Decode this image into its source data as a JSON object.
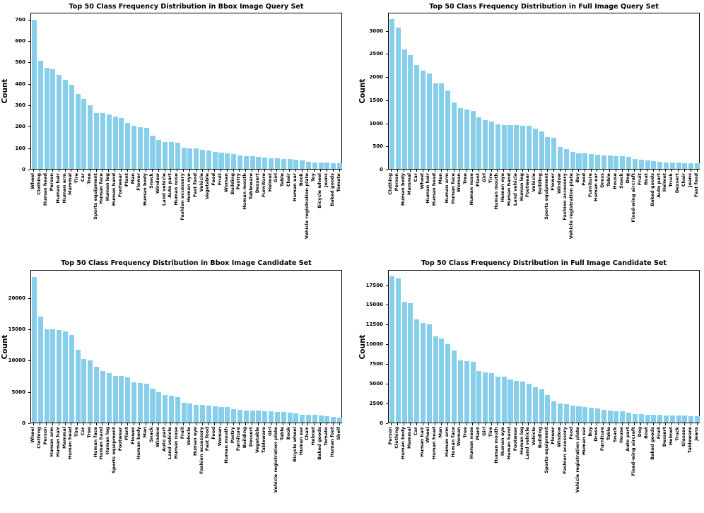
{
  "figure": {
    "background_color": "#ffffff",
    "bar_color": "#87CEEB",
    "axis_color": "#000000"
  },
  "chart_data": [
    {
      "type": "bar",
      "title": "Top 50 Class Frequency Distribution in Bbox Image Query Set",
      "ylabel": "Count",
      "xlabel": "",
      "legend": null,
      "grid": false,
      "ylim": [
        0,
        732
      ],
      "yticks": [
        0,
        100,
        200,
        300,
        400,
        500,
        600,
        700
      ],
      "categories": [
        "Wheel",
        "Clothing",
        "Human head",
        "Person",
        "Human hair",
        "Human arm",
        "Mammal",
        "Tire",
        "Car",
        "Tree",
        "Sports equipment",
        "Human face",
        "Human leg",
        "Human hand",
        "Footwear",
        "Plant",
        "Man",
        "Flower",
        "Human body",
        "Snack",
        "Window",
        "Land vehicle",
        "Auto part",
        "Human nose",
        "Fashion accessory",
        "Human eye",
        "Fast food",
        "Vehicle",
        "Vegetable",
        "Food",
        "Fruit",
        "Woman",
        "Building",
        "Pastry",
        "Human mouth",
        "Tableware",
        "Dessert",
        "Furniture",
        "Helmet",
        "Girl",
        "Table",
        "Chair",
        "Human ear",
        "Book",
        "Vehicle registration plate",
        "Toy",
        "Bicycle wheel",
        "Jeans",
        "Baked goods",
        "Tomato"
      ],
      "values": [
        697,
        505,
        470,
        465,
        440,
        416,
        394,
        350,
        325,
        296,
        261,
        260,
        253,
        243,
        237,
        214,
        201,
        196,
        191,
        154,
        136,
        126,
        124,
        122,
        100,
        97,
        95,
        90,
        85,
        78,
        75,
        72,
        68,
        64,
        61,
        58,
        57,
        54,
        50,
        48,
        47,
        46,
        43,
        41,
        33,
        31,
        30,
        29,
        28,
        27
      ]
    },
    {
      "type": "bar",
      "title": "Top 50 Class Frequency Distribution in Full Image Query Set",
      "ylabel": "Count",
      "xlabel": "",
      "legend": null,
      "grid": false,
      "ylim": [
        0,
        3390
      ],
      "yticks": [
        0,
        500,
        1000,
        1500,
        2000,
        2500,
        3000
      ],
      "categories": [
        "Clothing",
        "Person",
        "Human body",
        "Mammal",
        "Car",
        "Wheel",
        "Human hair",
        "Human head",
        "Man",
        "Human arm",
        "Human face",
        "Woman",
        "Tree",
        "Human nose",
        "Plant",
        "Girl",
        "Tire",
        "Human mouth",
        "Human eye",
        "Human hand",
        "Land vehicle",
        "Human leg",
        "Footwear",
        "Vehicle",
        "Building",
        "Sports equipment",
        "Flower",
        "Window",
        "Fashion accessory",
        "Vehicle registration plate",
        "Boy",
        "Food",
        "Furniture",
        "Human ear",
        "Dress",
        "Table",
        "House",
        "Snack",
        "Dog",
        "Fixed-wing aircraft",
        "Fruit",
        "Boat",
        "Baked goods",
        "Auto part",
        "Helmet",
        "Truck",
        "Dessert",
        "Chair",
        "Jeans",
        "Fast food"
      ],
      "values": [
        3230,
        3060,
        2580,
        2460,
        2250,
        2120,
        2060,
        1855,
        1850,
        1700,
        1440,
        1310,
        1280,
        1250,
        1110,
        1050,
        1030,
        965,
        950,
        945,
        940,
        935,
        925,
        870,
        805,
        690,
        675,
        480,
        430,
        365,
        340,
        330,
        325,
        300,
        295,
        285,
        280,
        275,
        255,
        220,
        205,
        180,
        165,
        148,
        143,
        138,
        133,
        130,
        125,
        115
      ]
    },
    {
      "type": "bar",
      "title": "Top 50 Class Frequency Distribution in Bbox Image Candidate Set",
      "ylabel": "Count",
      "xlabel": "",
      "legend": null,
      "grid": false,
      "ylim": [
        0,
        24500
      ],
      "yticks": [
        0,
        5000,
        10000,
        15000,
        20000
      ],
      "categories": [
        "Wheel",
        "Clothing",
        "Person",
        "Human arm",
        "Human hair",
        "Mammal",
        "Human head",
        "Tire",
        "Car",
        "Tree",
        "Human face",
        "Human hand",
        "Human leg",
        "Sports equipment",
        "Footwear",
        "Plant",
        "Flower",
        "Human body",
        "Man",
        "Snack",
        "Window",
        "Auto part",
        "Land vehicle",
        "Human nose",
        "Fruit",
        "Vehicle",
        "Human eye",
        "Fashion accessory",
        "Fast food",
        "Food",
        "Woman",
        "Human mouth",
        "Pastry",
        "Furniture",
        "Building",
        "Dessert",
        "Vegetable",
        "Tableware",
        "Girl",
        "Vehicle registration plate",
        "Table",
        "Book",
        "Bicycle wheel",
        "Human ear",
        "Chair",
        "Helmet",
        "Baked goods",
        "Tomato",
        "Human foot",
        "Shelf"
      ],
      "values": [
        23300,
        16900,
        14950,
        14900,
        14800,
        14550,
        14000,
        11650,
        10150,
        9950,
        8900,
        8250,
        7850,
        7500,
        7450,
        7250,
        6450,
        6350,
        6250,
        5400,
        4850,
        4350,
        4300,
        4100,
        3200,
        3000,
        2850,
        2800,
        2700,
        2550,
        2500,
        2450,
        2150,
        2000,
        1950,
        1900,
        1870,
        1850,
        1800,
        1750,
        1700,
        1600,
        1500,
        1300,
        1250,
        1200,
        1100,
        1050,
        950,
        800
      ]
    },
    {
      "type": "bar",
      "title": "Top 50 Class Frequency Distribution in Full Image Candidate Set",
      "ylabel": "Count",
      "xlabel": "",
      "legend": null,
      "grid": false,
      "ylim": [
        0,
        19430
      ],
      "yticks": [
        0,
        2500,
        5000,
        7500,
        10000,
        12500,
        15000,
        17500
      ],
      "categories": [
        "Person",
        "Clothing",
        "Human body",
        "Mammal",
        "Car",
        "Human hair",
        "Wheel",
        "Human head",
        "Man",
        "Human arm",
        "Human face",
        "Woman",
        "Tree",
        "Human nose",
        "Plant",
        "Girl",
        "Tire",
        "Human mouth",
        "Human eye",
        "Human hand",
        "Footwear",
        "Human leg",
        "Land vehicle",
        "Vehicle",
        "Building",
        "Sports equipment",
        "Flower",
        "Window",
        "Fashion accessory",
        "Food",
        "Vehicle registration plate",
        "Human ear",
        "Boy",
        "Dress",
        "Furniture",
        "Table",
        "Snack",
        "House",
        "Auto part",
        "Fixed-wing aircraft",
        "Dog",
        "Boat",
        "Baked goods",
        "Fruit",
        "Dessert",
        "Helmet",
        "Truck",
        "Glasses",
        "Tableware",
        "Jeans"
      ],
      "values": [
        18500,
        18300,
        15300,
        15150,
        13100,
        12600,
        12450,
        10900,
        10650,
        9900,
        9100,
        7900,
        7750,
        7700,
        6550,
        6400,
        6250,
        5850,
        5800,
        5500,
        5300,
        5200,
        4950,
        4500,
        4200,
        3450,
        2700,
        2450,
        2300,
        2150,
        2050,
        1950,
        1850,
        1800,
        1650,
        1500,
        1450,
        1400,
        1250,
        1100,
        1050,
        1000,
        980,
        950,
        930,
        900,
        880,
        860,
        840,
        820
      ]
    }
  ]
}
